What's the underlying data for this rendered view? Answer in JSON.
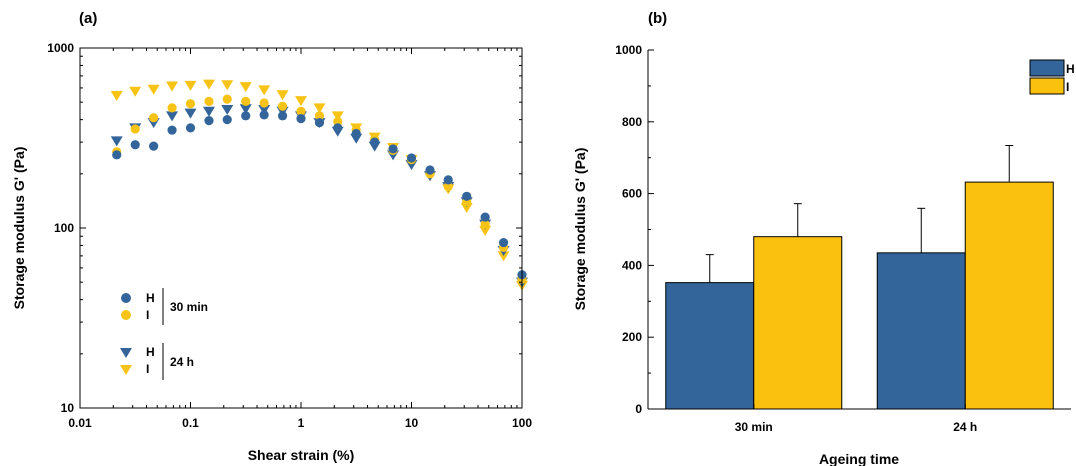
{
  "chart_data": [
    {
      "panel_label": "(a)",
      "type": "scatter",
      "xlabel": "Shear strain (%)",
      "ylabel": "Storage modulus G' (Pa)",
      "xscale": "log",
      "yscale": "log",
      "xlim": [
        0.01,
        100
      ],
      "ylim": [
        10,
        1000
      ],
      "xticks": [
        "0.01",
        "0.1",
        "1",
        "10",
        "100"
      ],
      "yticks": [
        "10",
        "100",
        "1000"
      ],
      "colors": {
        "H": "#34659A",
        "I": "#F7C316"
      },
      "series": [
        {
          "name": "H",
          "time": "30 min",
          "marker": "circle",
          "x": [
            0.0215,
            0.0316,
            0.0464,
            0.0681,
            0.1,
            0.147,
            0.215,
            0.316,
            0.464,
            0.681,
            1,
            1.47,
            2.15,
            3.16,
            4.64,
            6.81,
            10,
            14.7,
            21.5,
            31.6,
            46.4,
            68.1,
            100
          ],
          "y": [
            255,
            290,
            285,
            350,
            360,
            395,
            400,
            420,
            425,
            420,
            405,
            385,
            360,
            335,
            300,
            275,
            245,
            210,
            185,
            150,
            115,
            83,
            55
          ]
        },
        {
          "name": "I",
          "time": "30 min",
          "marker": "circle",
          "x": [
            0.0215,
            0.0316,
            0.0464,
            0.0681,
            0.1,
            0.147,
            0.215,
            0.316,
            0.464,
            0.681,
            1,
            1.47,
            2.15,
            3.16,
            4.64,
            6.81,
            10,
            14.7,
            21.5,
            31.6,
            46.4,
            68.1,
            100
          ],
          "y": [
            265,
            355,
            410,
            465,
            490,
            505,
            520,
            505,
            495,
            475,
            445,
            420,
            390,
            350,
            310,
            270,
            240,
            200,
            170,
            140,
            105,
            78,
            52
          ]
        },
        {
          "name": "H",
          "time": "24 h",
          "marker": "triangle-down",
          "x": [
            0.0215,
            0.0316,
            0.0464,
            0.0681,
            0.1,
            0.147,
            0.215,
            0.316,
            0.464,
            0.681,
            1,
            1.47,
            2.15,
            3.16,
            4.64,
            6.81,
            10,
            14.7,
            21.5,
            31.6,
            46.4,
            68.1,
            100
          ],
          "y": [
            305,
            360,
            385,
            420,
            435,
            445,
            455,
            460,
            455,
            445,
            420,
            385,
            345,
            315,
            285,
            255,
            225,
            195,
            170,
            140,
            105,
            75,
            50
          ]
        },
        {
          "name": "I",
          "time": "24 h",
          "marker": "triangle-down",
          "x": [
            0.0215,
            0.0316,
            0.0464,
            0.0681,
            0.1,
            0.147,
            0.215,
            0.316,
            0.464,
            0.681,
            1,
            1.47,
            2.15,
            3.16,
            4.64,
            6.81,
            10,
            14.7,
            21.5,
            31.6,
            46.4,
            68.1,
            100
          ],
          "y": [
            545,
            575,
            590,
            615,
            620,
            630,
            625,
            610,
            585,
            550,
            510,
            465,
            420,
            360,
            320,
            280,
            240,
            195,
            165,
            130,
            97,
            70,
            48
          ]
        }
      ],
      "legend": {
        "placement": "bottom-left",
        "groups": [
          {
            "time": "30 min",
            "entries": [
              "H",
              "I"
            ]
          },
          {
            "time": "24 h",
            "entries": [
              "H",
              "I"
            ]
          }
        ]
      }
    },
    {
      "panel_label": "(b)",
      "type": "bar",
      "xlabel": "Ageing time",
      "ylabel": "Storage modulus G' (Pa)",
      "ylim": [
        0,
        1000
      ],
      "yticks": [
        "0",
        "200",
        "400",
        "600",
        "800",
        "1000"
      ],
      "categories": [
        "30 min",
        "24 h"
      ],
      "series": [
        {
          "name": "H",
          "color": "#34659A",
          "values": [
            352,
            435
          ],
          "errors": [
            78,
            124
          ]
        },
        {
          "name": "I",
          "color": "#FBC10F",
          "values": [
            480,
            632
          ],
          "errors": [
            92,
            102
          ]
        }
      ],
      "legend": {
        "placement": "top-right",
        "entries": [
          "H",
          "I"
        ]
      }
    }
  ]
}
